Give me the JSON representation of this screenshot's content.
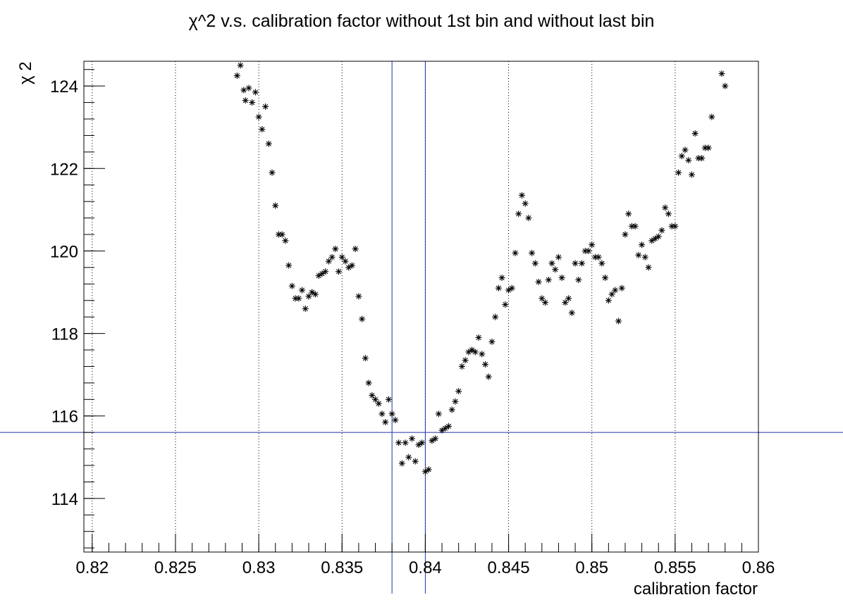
{
  "chart_data": {
    "type": "scatter",
    "title": "χ^2 v.s. calibration factor without 1st bin and without last bin",
    "xlabel": "calibration factor",
    "ylabel": "χ 2",
    "xlim": [
      0.8195,
      0.86
    ],
    "ylim": [
      112.7,
      124.6
    ],
    "grid_x": true,
    "grid_y": false,
    "marker": "asterisk",
    "x_ticks": [
      "0.82",
      "0.825",
      "0.83",
      "0.835",
      "0.84",
      "0.845",
      "0.85",
      "0.855",
      "0.86"
    ],
    "y_ticks": [
      "114",
      "116",
      "118",
      "120",
      "122",
      "124"
    ],
    "reference_lines": {
      "vertical": [
        0.838,
        0.84
      ],
      "horizontal": [
        115.6
      ],
      "color": "#2233aa"
    },
    "series": [
      {
        "x": [
          0.8287,
          0.8289,
          0.8291,
          0.8292,
          0.8294,
          0.8296,
          0.8298,
          0.83,
          0.8302,
          0.8304,
          0.8306,
          0.8308,
          0.831,
          0.8312,
          0.8314,
          0.8316,
          0.8318,
          0.832,
          0.8322,
          0.8324,
          0.8326,
          0.8328,
          0.833,
          0.8332,
          0.8334,
          0.8336,
          0.8338,
          0.834,
          0.8342,
          0.8344,
          0.8346,
          0.8348,
          0.835,
          0.8352,
          0.8354,
          0.8356,
          0.8358,
          0.836,
          0.8362,
          0.8364,
          0.8366,
          0.8368,
          0.837,
          0.8372,
          0.8374,
          0.8376,
          0.8378,
          0.838,
          0.8382,
          0.8384,
          0.8386,
          0.8388,
          0.839,
          0.8392,
          0.8394,
          0.8396,
          0.8398,
          0.84,
          0.8402,
          0.8404,
          0.8406,
          0.8408,
          0.841,
          0.8412,
          0.8414,
          0.8416,
          0.8418,
          0.842,
          0.8422,
          0.8424,
          0.8426,
          0.8428,
          0.843,
          0.8432,
          0.8434,
          0.8436,
          0.8438,
          0.844,
          0.8442,
          0.8444,
          0.8446,
          0.8448,
          0.845,
          0.8452,
          0.8454,
          0.8456,
          0.8458,
          0.846,
          0.8462,
          0.8464,
          0.8466,
          0.8468,
          0.847,
          0.8472,
          0.8474,
          0.8476,
          0.8478,
          0.848,
          0.8482,
          0.8484,
          0.8486,
          0.8488,
          0.849,
          0.8492,
          0.8494,
          0.8496,
          0.8498,
          0.85,
          0.8502,
          0.8504,
          0.8506,
          0.8508,
          0.851,
          0.8512,
          0.8514,
          0.8516,
          0.8518,
          0.852,
          0.8522,
          0.8524,
          0.8526,
          0.8528,
          0.853,
          0.8532,
          0.8534,
          0.8536,
          0.8538,
          0.854,
          0.8542,
          0.8544,
          0.8546,
          0.8548,
          0.855,
          0.8552,
          0.8554,
          0.8556,
          0.8558,
          0.856,
          0.8562,
          0.8564,
          0.8566,
          0.8568,
          0.857,
          0.8572,
          0.8578,
          0.858
        ],
        "y": [
          124.25,
          124.5,
          123.9,
          123.65,
          123.95,
          123.6,
          123.85,
          123.25,
          122.95,
          123.5,
          122.6,
          121.9,
          121.1,
          120.4,
          120.4,
          120.25,
          119.65,
          119.15,
          118.85,
          118.85,
          119.05,
          118.6,
          118.9,
          119.0,
          118.95,
          119.4,
          119.45,
          119.5,
          119.75,
          119.85,
          120.05,
          119.5,
          119.85,
          119.75,
          119.6,
          119.65,
          120.05,
          118.9,
          118.35,
          117.4,
          116.8,
          116.5,
          116.4,
          116.3,
          116.05,
          115.85,
          116.4,
          116.05,
          115.9,
          115.35,
          114.85,
          115.35,
          115.0,
          115.45,
          114.9,
          115.3,
          115.35,
          114.65,
          114.7,
          115.4,
          115.45,
          116.05,
          115.65,
          115.7,
          115.75,
          116.15,
          116.35,
          116.6,
          117.2,
          117.35,
          117.55,
          117.6,
          117.55,
          117.9,
          117.5,
          117.25,
          116.95,
          117.8,
          118.4,
          119.1,
          119.35,
          118.7,
          119.05,
          119.1,
          119.95,
          120.9,
          121.35,
          121.15,
          120.8,
          119.95,
          119.7,
          119.25,
          118.85,
          118.75,
          119.3,
          119.7,
          119.55,
          119.85,
          119.35,
          118.75,
          118.85,
          118.5,
          119.7,
          119.3,
          119.7,
          120.0,
          120.0,
          120.15,
          119.85,
          119.85,
          119.7,
          119.35,
          118.8,
          118.95,
          119.05,
          118.3,
          119.1,
          120.4,
          120.9,
          120.6,
          120.6,
          119.9,
          120.15,
          119.85,
          119.6,
          120.25,
          120.3,
          120.35,
          120.5,
          121.05,
          120.9,
          120.6,
          120.6,
          121.9,
          122.3,
          122.45,
          122.2,
          121.85,
          122.85,
          122.25,
          122.25,
          122.5,
          122.5,
          123.25,
          124.3,
          124.0
        ]
      }
    ]
  }
}
